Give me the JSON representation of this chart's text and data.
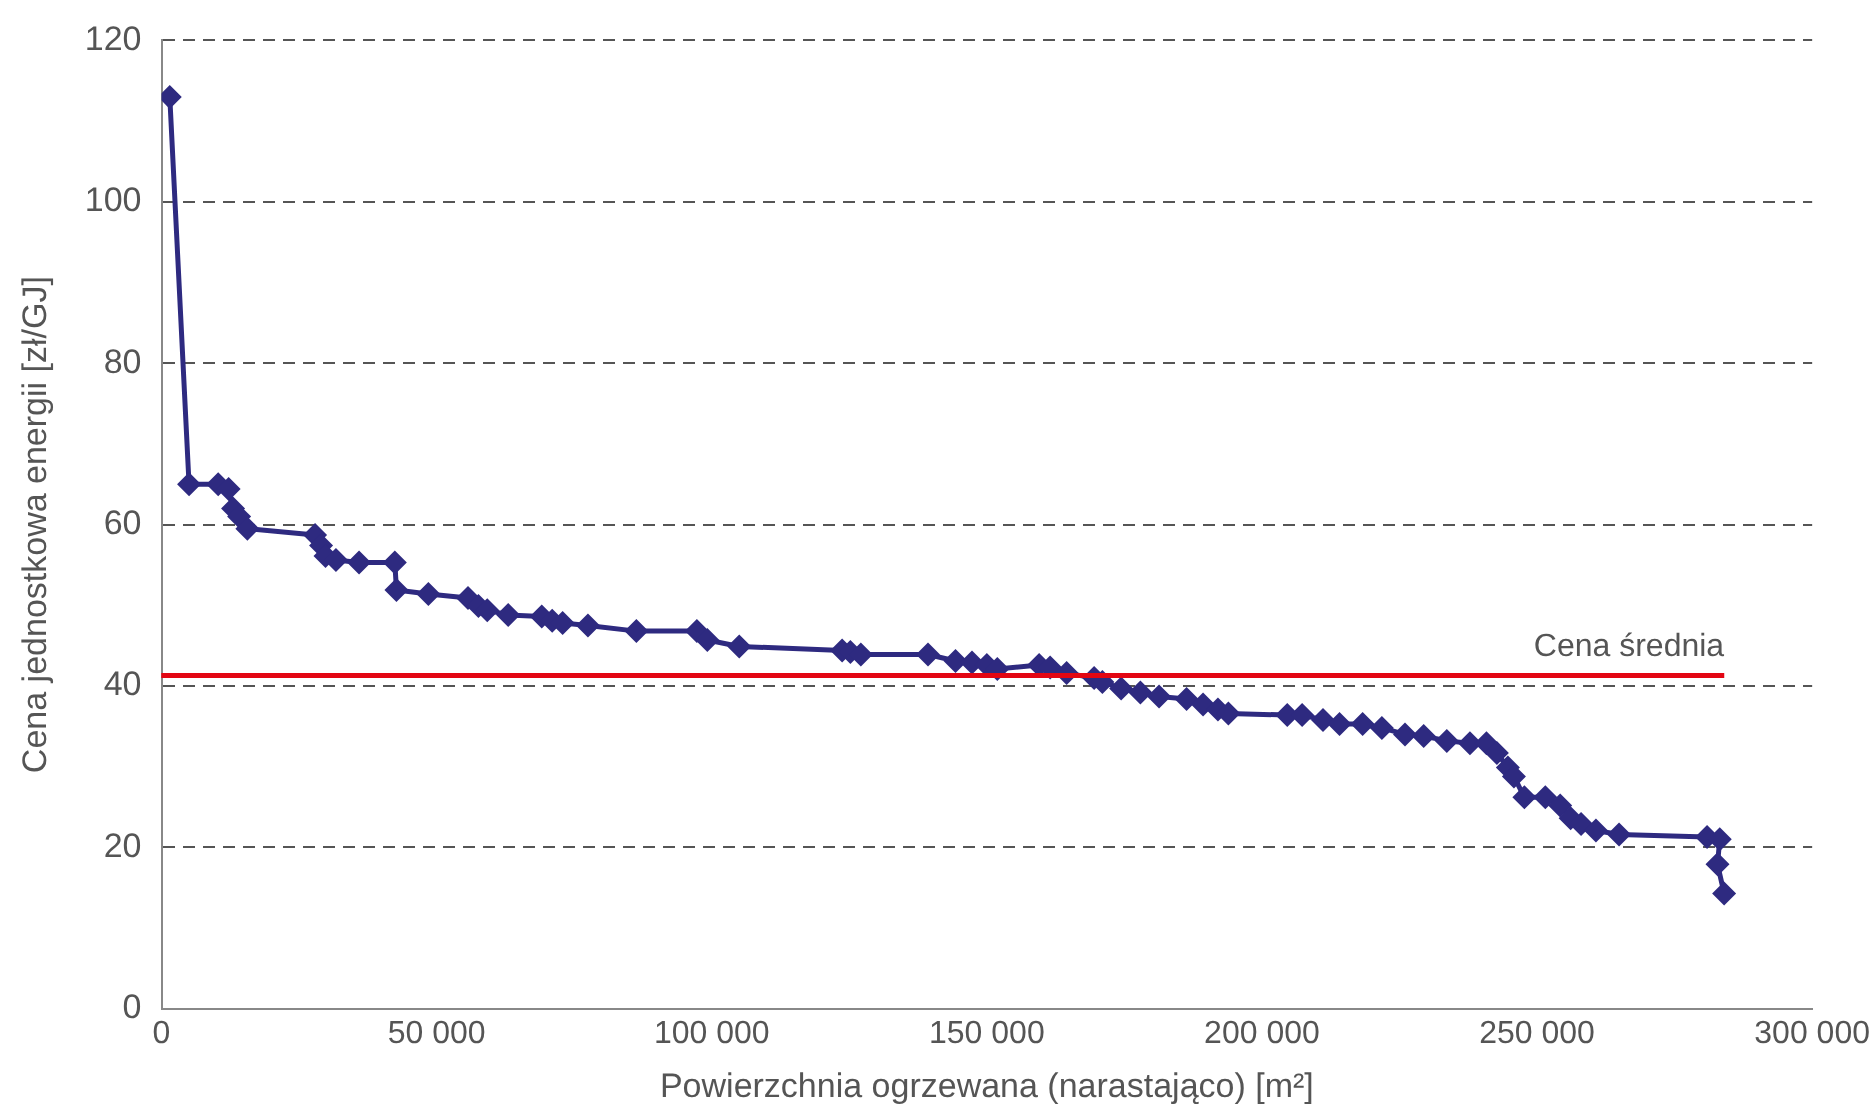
{
  "chart_data": {
    "type": "line",
    "xlabel": "Powierzchnia ogrzewana (narastająco) [m²]",
    "ylabel": "Cena jednostkowa energii [zł/GJ]",
    "xlim": [
      0,
      300000
    ],
    "xticks": [
      0,
      {
        "value": 50000,
        "label": "50 000"
      },
      {
        "value": 100000,
        "label": "100 000"
      },
      {
        "value": 150000,
        "label": "150 000"
      },
      {
        "value": 200000,
        "label": "200 000"
      },
      {
        "value": 250000,
        "label": "250 000"
      },
      {
        "value": 300000,
        "label": "300 000"
      }
    ],
    "ylim": [
      0,
      120
    ],
    "yticks": [
      0,
      20,
      40,
      60,
      80,
      100,
      120
    ],
    "grid": "y",
    "legend": false,
    "marker": "diamond",
    "line_style": "solid",
    "series": [
      {
        "color": "#2e2a80",
        "x": [
          1500,
          5000,
          10300,
          12200,
          13000,
          14100,
          15600,
          27900,
          29000,
          29800,
          31700,
          35900,
          42400,
          42700,
          48500,
          55700,
          57600,
          59200,
          63000,
          69100,
          71000,
          72900,
          77500,
          86300,
          97300,
          99200,
          105000,
          123700,
          125200,
          127100,
          139300,
          144300,
          147300,
          150000,
          151900,
          159500,
          161500,
          164500,
          169500,
          171000,
          174400,
          177900,
          181300,
          186300,
          189300,
          192000,
          193900,
          204600,
          207300,
          211100,
          214100,
          218300,
          221800,
          226000,
          229400,
          233600,
          237800,
          240800,
          242700,
          244700,
          245800,
          247700,
          251500,
          254200,
          256100,
          258000,
          260700,
          264900,
          280900,
          283200,
          282800,
          284000
        ],
        "values": [
          113,
          65,
          65,
          64.4,
          62,
          61,
          59.5,
          58.7,
          57.4,
          56.1,
          55.6,
          55.3,
          55.3,
          51.9,
          51.4,
          50.9,
          49.9,
          49.4,
          48.8,
          48.6,
          48.1,
          47.8,
          47.5,
          46.8,
          46.8,
          45.7,
          44.9,
          44.4,
          44.2,
          43.9,
          43.9,
          43.1,
          42.9,
          42.6,
          42.1,
          42.6,
          42.3,
          41.6,
          41.0,
          40.5,
          39.7,
          39.2,
          38.7,
          38.4,
          37.7,
          37.1,
          36.6,
          36.4,
          36.4,
          35.8,
          35.3,
          35.3,
          34.8,
          34.0,
          33.8,
          33.2,
          32.9,
          32.9,
          31.7,
          29.9,
          28.8,
          26.2,
          26.2,
          25.2,
          23.6,
          22.9,
          22.1,
          21.6,
          21.3,
          21.0,
          17.9,
          14.3
        ]
      }
    ],
    "ref_lines": [
      {
        "axis": "y",
        "value": 41.3,
        "label": "Cena średnia",
        "color": "#e30613",
        "line_style": "solid"
      }
    ]
  }
}
